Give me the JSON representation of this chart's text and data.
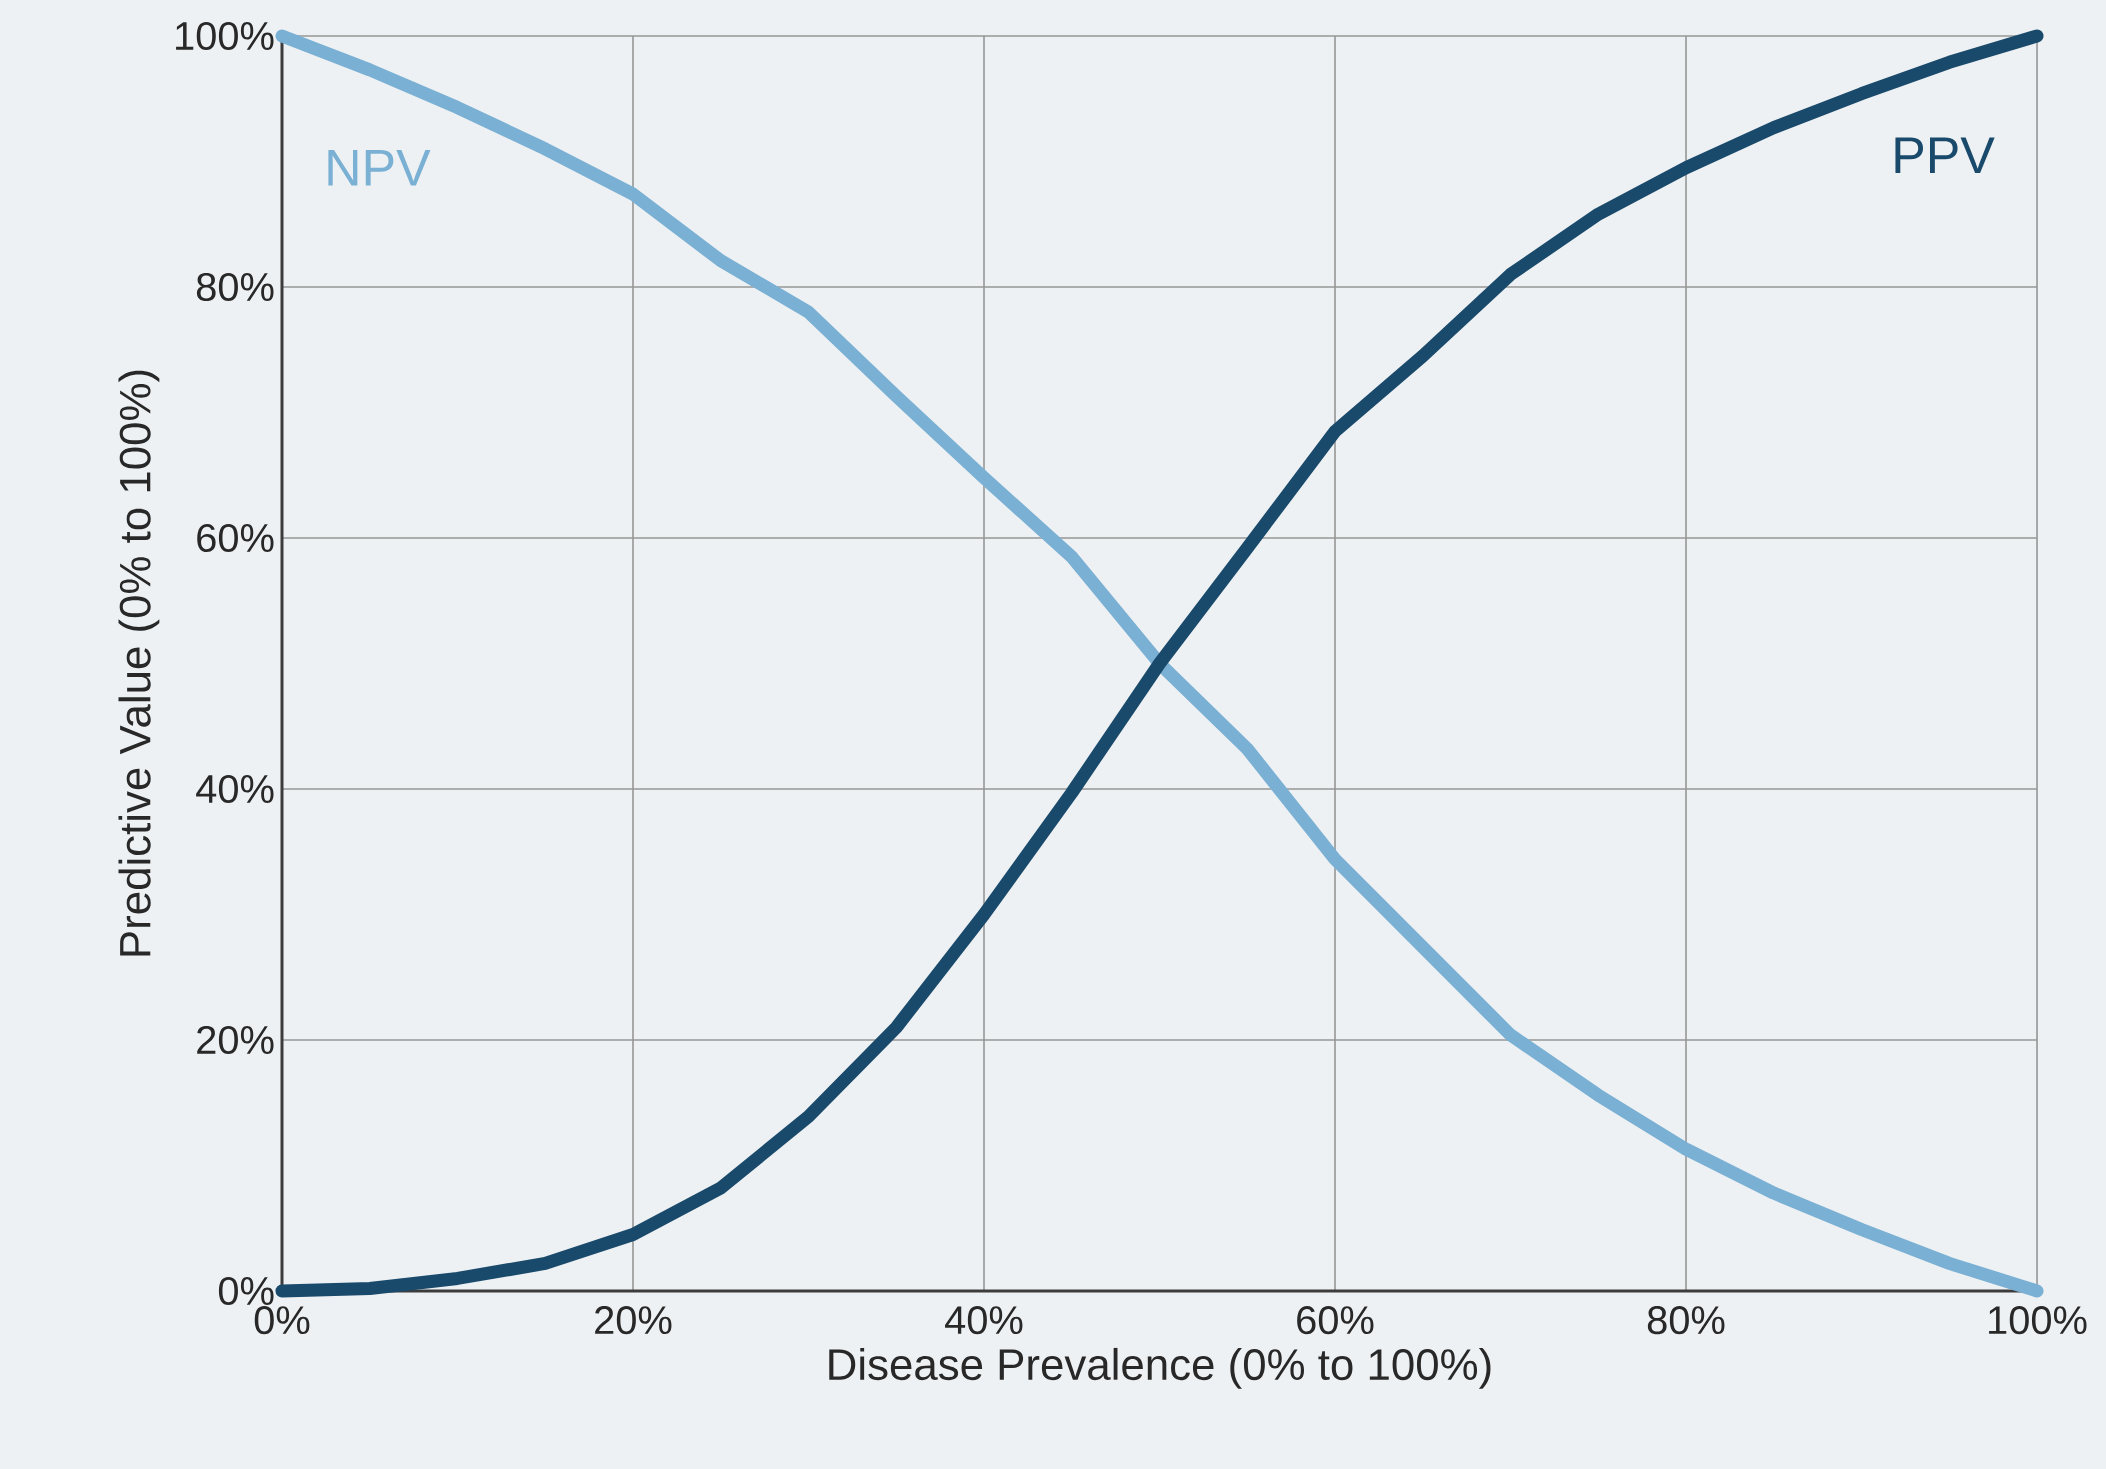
{
  "chart_data": {
    "type": "line",
    "xlabel": "Disease Prevalence (0% to 100%)",
    "ylabel": "Predictive Value (0% to 100%)",
    "x": [
      0,
      5,
      10,
      15,
      20,
      25,
      30,
      35,
      40,
      45,
      50,
      55,
      60,
      65,
      70,
      75,
      80,
      85,
      90,
      95,
      100
    ],
    "series": [
      {
        "name": "NPV",
        "color": "#7ab0d4",
        "values": [
          100,
          97.3,
          94.3,
          91,
          87.4,
          82.1,
          78,
          71.3,
          64.8,
          58.5,
          50,
          43.2,
          34.4,
          27.4,
          20.4,
          15.6,
          11.3,
          7.8,
          4.9,
          2.2,
          0
        ]
      },
      {
        "name": "PPV",
        "color": "#1a4a6b",
        "values": [
          0,
          0.2,
          1,
          2.2,
          4.5,
          8.2,
          13.9,
          21,
          30,
          39.7,
          50,
          59.2,
          68.5,
          74.5,
          81,
          85.8,
          89.5,
          92.7,
          95.4,
          97.9,
          100
        ]
      }
    ],
    "xlim": [
      0,
      100
    ],
    "ylim": [
      0,
      100
    ],
    "xticks": [
      {
        "value": 0,
        "label": "0%"
      },
      {
        "value": 20,
        "label": "20%"
      },
      {
        "value": 40,
        "label": "40%"
      },
      {
        "value": 60,
        "label": "60%"
      },
      {
        "value": 80,
        "label": "80%"
      },
      {
        "value": 100,
        "label": "100%"
      }
    ],
    "yticks": [
      {
        "value": 0,
        "label": "0%"
      },
      {
        "value": 20,
        "label": "20%"
      },
      {
        "value": 40,
        "label": "40%"
      },
      {
        "value": 60,
        "label": "60%"
      },
      {
        "value": 80,
        "label": "80%"
      },
      {
        "value": 100,
        "label": "100%"
      }
    ],
    "grid": true,
    "legend": false,
    "marker": "none",
    "line_style": "solid"
  }
}
